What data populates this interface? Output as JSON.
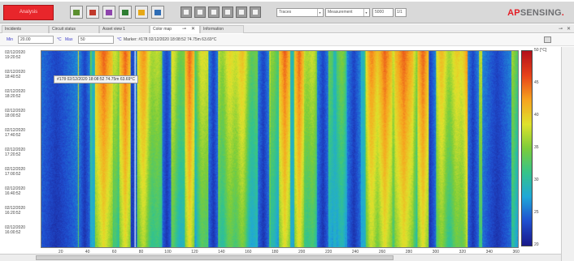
{
  "toolbar": {
    "alarm_label": "Analysis",
    "tools": [
      {
        "icon": "config-icon",
        "color": "#5b8f2f"
      },
      {
        "icon": "chart-add-icon",
        "color": "#c0392b"
      },
      {
        "icon": "chart-edit-icon",
        "color": "#8e44ad"
      },
      {
        "icon": "chart-view-icon",
        "color": "#2e7d32"
      },
      {
        "icon": "chart-export-icon",
        "color": "#e6a817"
      },
      {
        "icon": "chart-refresh-icon",
        "color": "#2f6db5"
      }
    ],
    "nav": [
      "first-icon",
      "prev-page-icon",
      "prev-icon",
      "play-icon",
      "next-icon",
      "last-icon"
    ],
    "select_traces": "Traces",
    "select_measurement": "Measurement",
    "select_value": "5000",
    "select_unit": "1/1"
  },
  "brand": {
    "ap": "AP",
    "rest": "SENSING",
    "dot": "."
  },
  "tabs": [
    {
      "label": "Incidents"
    },
    {
      "label": "Circuit status"
    },
    {
      "label": "Asset view 1"
    },
    {
      "label": "Color map"
    },
    {
      "label": "Information"
    }
  ],
  "range": {
    "min_label": "Min",
    "min_value": "20.00",
    "min_unit": "°C",
    "max_label": "Max",
    "max_value": "50",
    "max_unit": "°C",
    "marker_text": "Marker: #178 02/12/2020 18:08:52 74.75m 63.69°C"
  },
  "chart_data": {
    "type": "heatmap",
    "x_ticks": [
      20,
      40,
      60,
      80,
      100,
      120,
      140,
      160,
      180,
      200,
      220,
      240,
      260,
      280,
      300,
      320,
      340,
      360
    ],
    "xlim": [
      5,
      362
    ],
    "y_ticks": [
      "02/12/2020 19:20:52",
      "02/12/2020 18:40:52",
      "02/12/2020 18:20:52",
      "02/12/2020 18:00:52",
      "02/12/2020 17:40:52",
      "02/12/2020 17:20:52",
      "02/12/2020 17:00:52",
      "02/12/2020 16:40:52",
      "02/12/2020 16:20:52",
      "02/12/2020 16:00:52"
    ],
    "tooltip": "#178 02/12/2020 18:08:52 74.75m 63.69°C",
    "colorbar_ticks": [
      20,
      25,
      30,
      35,
      40,
      45,
      50
    ],
    "colorbar_range": [
      20,
      50
    ],
    "colorbar_top_label": "50 [°C]",
    "colors": [
      "#1a1a8c",
      "#1f4fd0",
      "#1fa8d8",
      "#35c48a",
      "#7ccd3a",
      "#dfe22c",
      "#f7a41f",
      "#e8431a",
      "#b5121b"
    ]
  }
}
